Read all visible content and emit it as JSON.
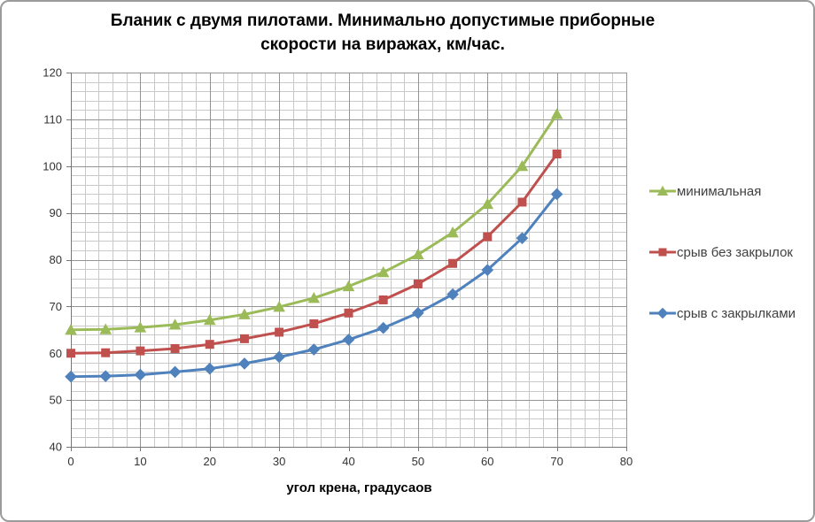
{
  "title": {
    "line1": "Бланик с двумя пилотами. Минимально допустимые приборные",
    "line2": "скорости на виражах, км/час."
  },
  "chart_data": {
    "type": "line",
    "title": "Бланик с двумя пилотами. Минимально допустимые приборные скорости на виражах, км/час.",
    "xlabel": "угол крена, градусаов",
    "ylabel": "",
    "x": [
      0,
      5,
      10,
      15,
      20,
      25,
      30,
      35,
      40,
      45,
      50,
      55,
      60,
      65,
      70
    ],
    "series": [
      {
        "name": "минимальная",
        "color": "#9BBB59",
        "marker": "triangle",
        "values": [
          65.0,
          65.1,
          65.5,
          66.1,
          67.1,
          68.3,
          69.9,
          71.8,
          74.3,
          77.3,
          81.1,
          85.8,
          91.9,
          100.0,
          111.1
        ]
      },
      {
        "name": "срыв без закрылок",
        "color": "#C0504D",
        "marker": "square",
        "values": [
          60.0,
          60.1,
          60.5,
          61.0,
          61.9,
          63.1,
          64.5,
          66.3,
          68.6,
          71.4,
          74.8,
          79.2,
          84.9,
          92.3,
          102.6
        ]
      },
      {
        "name": "срыв с закрылками",
        "color": "#4F81BD",
        "marker": "diamond",
        "values": [
          55.0,
          55.1,
          55.4,
          56.0,
          56.7,
          57.8,
          59.2,
          60.8,
          62.9,
          65.4,
          68.6,
          72.6,
          77.8,
          84.6,
          94.0
        ]
      }
    ],
    "xlim": [
      0,
      80
    ],
    "ylim": [
      40,
      120
    ],
    "x_ticks": [
      0,
      10,
      20,
      30,
      40,
      50,
      60,
      70,
      80
    ],
    "y_ticks": [
      40,
      50,
      60,
      70,
      80,
      90,
      100,
      110,
      120
    ],
    "minor_step_x": 2,
    "minor_step_y": 2,
    "major_step_x": 10,
    "major_step_y": 10,
    "grid": true,
    "legend_position": "right"
  },
  "colors": {
    "grid_minor": "#C9C9C9",
    "grid_major": "#949494",
    "axis": "#767676",
    "tick_text": "#333333",
    "legend_text": "#404040",
    "border": "#9B9B9B"
  }
}
